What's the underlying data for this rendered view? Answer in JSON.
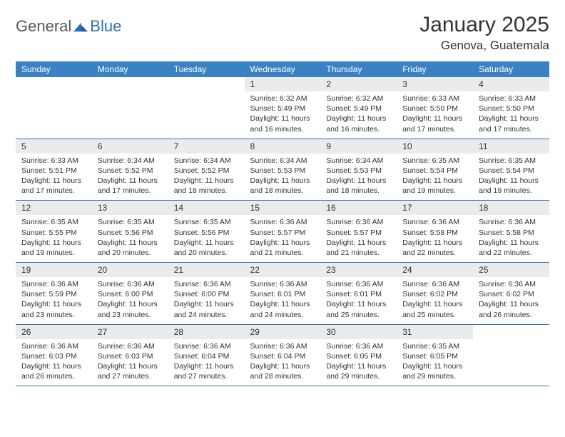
{
  "brand": {
    "part1": "General",
    "part2": "Blue"
  },
  "title": "January 2025",
  "location": "Genova, Guatemala",
  "colors": {
    "header_bg": "#3b82c4",
    "header_text": "#ffffff",
    "daynum_bg": "#e9ebec",
    "border": "#3b6fa0",
    "brand_gray": "#555b60",
    "brand_blue": "#2a71b8",
    "text": "#333333",
    "page_bg": "#ffffff"
  },
  "weekdays": [
    "Sunday",
    "Monday",
    "Tuesday",
    "Wednesday",
    "Thursday",
    "Friday",
    "Saturday"
  ],
  "weeks": [
    [
      {
        "n": "",
        "sr": "",
        "ss": "",
        "dl": ""
      },
      {
        "n": "",
        "sr": "",
        "ss": "",
        "dl": ""
      },
      {
        "n": "",
        "sr": "",
        "ss": "",
        "dl": ""
      },
      {
        "n": "1",
        "sr": "6:32 AM",
        "ss": "5:49 PM",
        "dl": "11 hours and 16 minutes."
      },
      {
        "n": "2",
        "sr": "6:32 AM",
        "ss": "5:49 PM",
        "dl": "11 hours and 16 minutes."
      },
      {
        "n": "3",
        "sr": "6:33 AM",
        "ss": "5:50 PM",
        "dl": "11 hours and 17 minutes."
      },
      {
        "n": "4",
        "sr": "6:33 AM",
        "ss": "5:50 PM",
        "dl": "11 hours and 17 minutes."
      }
    ],
    [
      {
        "n": "5",
        "sr": "6:33 AM",
        "ss": "5:51 PM",
        "dl": "11 hours and 17 minutes."
      },
      {
        "n": "6",
        "sr": "6:34 AM",
        "ss": "5:52 PM",
        "dl": "11 hours and 17 minutes."
      },
      {
        "n": "7",
        "sr": "6:34 AM",
        "ss": "5:52 PM",
        "dl": "11 hours and 18 minutes."
      },
      {
        "n": "8",
        "sr": "6:34 AM",
        "ss": "5:53 PM",
        "dl": "11 hours and 18 minutes."
      },
      {
        "n": "9",
        "sr": "6:34 AM",
        "ss": "5:53 PM",
        "dl": "11 hours and 18 minutes."
      },
      {
        "n": "10",
        "sr": "6:35 AM",
        "ss": "5:54 PM",
        "dl": "11 hours and 19 minutes."
      },
      {
        "n": "11",
        "sr": "6:35 AM",
        "ss": "5:54 PM",
        "dl": "11 hours and 19 minutes."
      }
    ],
    [
      {
        "n": "12",
        "sr": "6:35 AM",
        "ss": "5:55 PM",
        "dl": "11 hours and 19 minutes."
      },
      {
        "n": "13",
        "sr": "6:35 AM",
        "ss": "5:56 PM",
        "dl": "11 hours and 20 minutes."
      },
      {
        "n": "14",
        "sr": "6:35 AM",
        "ss": "5:56 PM",
        "dl": "11 hours and 20 minutes."
      },
      {
        "n": "15",
        "sr": "6:36 AM",
        "ss": "5:57 PM",
        "dl": "11 hours and 21 minutes."
      },
      {
        "n": "16",
        "sr": "6:36 AM",
        "ss": "5:57 PM",
        "dl": "11 hours and 21 minutes."
      },
      {
        "n": "17",
        "sr": "6:36 AM",
        "ss": "5:58 PM",
        "dl": "11 hours and 22 minutes."
      },
      {
        "n": "18",
        "sr": "6:36 AM",
        "ss": "5:58 PM",
        "dl": "11 hours and 22 minutes."
      }
    ],
    [
      {
        "n": "19",
        "sr": "6:36 AM",
        "ss": "5:59 PM",
        "dl": "11 hours and 23 minutes."
      },
      {
        "n": "20",
        "sr": "6:36 AM",
        "ss": "6:00 PM",
        "dl": "11 hours and 23 minutes."
      },
      {
        "n": "21",
        "sr": "6:36 AM",
        "ss": "6:00 PM",
        "dl": "11 hours and 24 minutes."
      },
      {
        "n": "22",
        "sr": "6:36 AM",
        "ss": "6:01 PM",
        "dl": "11 hours and 24 minutes."
      },
      {
        "n": "23",
        "sr": "6:36 AM",
        "ss": "6:01 PM",
        "dl": "11 hours and 25 minutes."
      },
      {
        "n": "24",
        "sr": "6:36 AM",
        "ss": "6:02 PM",
        "dl": "11 hours and 25 minutes."
      },
      {
        "n": "25",
        "sr": "6:36 AM",
        "ss": "6:02 PM",
        "dl": "11 hours and 26 minutes."
      }
    ],
    [
      {
        "n": "26",
        "sr": "6:36 AM",
        "ss": "6:03 PM",
        "dl": "11 hours and 26 minutes."
      },
      {
        "n": "27",
        "sr": "6:36 AM",
        "ss": "6:03 PM",
        "dl": "11 hours and 27 minutes."
      },
      {
        "n": "28",
        "sr": "6:36 AM",
        "ss": "6:04 PM",
        "dl": "11 hours and 27 minutes."
      },
      {
        "n": "29",
        "sr": "6:36 AM",
        "ss": "6:04 PM",
        "dl": "11 hours and 28 minutes."
      },
      {
        "n": "30",
        "sr": "6:36 AM",
        "ss": "6:05 PM",
        "dl": "11 hours and 29 minutes."
      },
      {
        "n": "31",
        "sr": "6:35 AM",
        "ss": "6:05 PM",
        "dl": "11 hours and 29 minutes."
      },
      {
        "n": "",
        "sr": "",
        "ss": "",
        "dl": ""
      }
    ]
  ],
  "labels": {
    "sunrise": "Sunrise:",
    "sunset": "Sunset:",
    "daylight": "Daylight:"
  }
}
